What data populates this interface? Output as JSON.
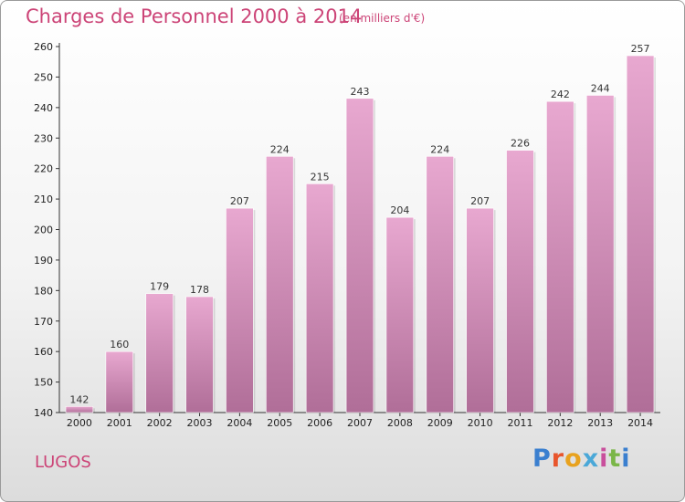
{
  "header": {
    "title": "Charges de Personnel 2000 à 2014",
    "subtitle": "(en milliers d'€)"
  },
  "footer": {
    "commune": "LUGOS",
    "brand": "Proxiti",
    "brand_colors": [
      "#3a7fcf",
      "#e8552c",
      "#e8a21e",
      "#4aa8d8",
      "#c94f9c",
      "#7ab648",
      "#3a7fcf"
    ]
  },
  "colors": {
    "accent": "#cc4477",
    "bar_top": "#e8a8d0",
    "bar_bottom": "#b06e98"
  },
  "chart_data": {
    "type": "bar",
    "categories": [
      "2000",
      "2001",
      "2002",
      "2003",
      "2004",
      "2005",
      "2006",
      "2007",
      "2008",
      "2009",
      "2010",
      "2011",
      "2012",
      "2013",
      "2014"
    ],
    "values": [
      142,
      160,
      179,
      178,
      207,
      224,
      215,
      243,
      204,
      224,
      207,
      226,
      242,
      244,
      257
    ],
    "title": "Charges de Personnel 2000 à 2014",
    "xlabel": "",
    "ylabel": "",
    "ylim": [
      140,
      260
    ],
    "yticks": [
      140,
      150,
      160,
      170,
      180,
      190,
      200,
      210,
      220,
      230,
      240,
      250,
      260
    ],
    "grid": false,
    "legend": "none"
  }
}
